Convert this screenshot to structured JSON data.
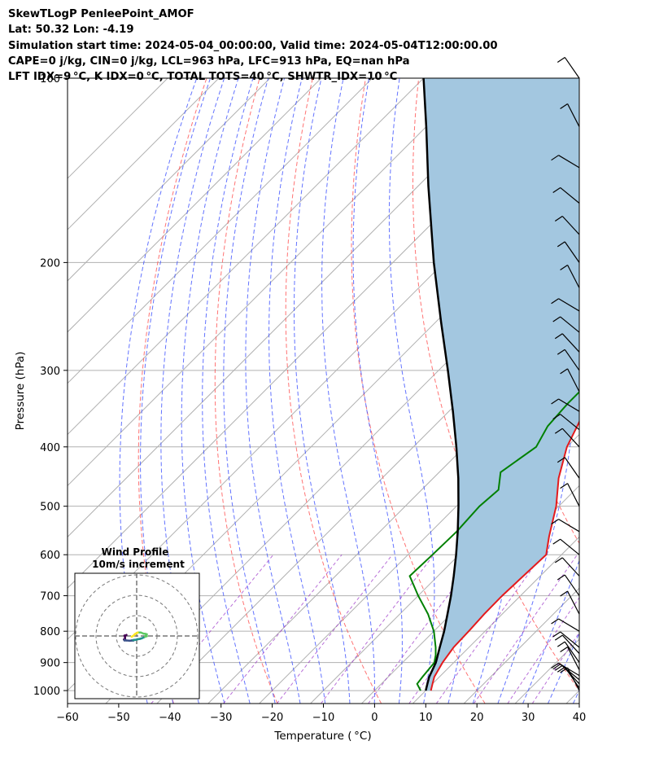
{
  "header": {
    "line1": "SkewTLogP PenleePoint_AMOF",
    "line2": "Lat: 50.32   Lon: -4.19",
    "line3": "Simulation start time: 2024-05-04_00:00:00, Valid time: 2024-05-04T12:00:00.00",
    "line4": "CAPE=0 j/kg, CIN=0 j/kg, LCL=963 hPa, LFC=913 hPa, EQ=nan hPa",
    "line5": "LFT IDX=9 °C, K IDX=0 °C, TOTAL TOTS=40 °C, SHWTR_IDX=10 °C"
  },
  "chart_data": {
    "type": "line",
    "xlabel": "Temperature ( °C)",
    "ylabel": "Pressure (hPa)",
    "xlim": [
      -60,
      40
    ],
    "ylim": [
      1050,
      100
    ],
    "y_scale": "log",
    "x_ticks": [
      -60,
      -50,
      -40,
      -30,
      -20,
      -10,
      0,
      10,
      20,
      30,
      40
    ],
    "x_tick_labels": [
      "−60",
      "−50",
      "−40",
      "−30",
      "−20",
      "−10",
      "0",
      "10",
      "20",
      "30",
      "40"
    ],
    "y_ticks": [
      1000,
      900,
      800,
      700,
      600,
      500,
      400,
      300,
      200,
      100
    ],
    "grid": true,
    "colors": {
      "temperature": "#e41a1c",
      "dewpoint": "#008000",
      "parcel": "#000000",
      "shading": "#a3c7e0",
      "dry_adiabats": "#ff5050",
      "moist_adiabats": "#3c50ff",
      "mixing_ratio": "#9a32c8"
    },
    "series": [
      {
        "name": "",
        "points": [
          [
            1000,
            11
          ],
          [
            975,
            10
          ],
          [
            950,
            9
          ],
          [
            900,
            7.8
          ],
          [
            850,
            7
          ],
          [
            800,
            6.8
          ],
          [
            750,
            6.5
          ],
          [
            700,
            6.4
          ],
          [
            650,
            6.7
          ],
          [
            600,
            7
          ],
          [
            560,
            4
          ],
          [
            500,
            -0.5
          ],
          [
            450,
            -5.5
          ],
          [
            400,
            -10
          ],
          [
            350,
            -13.5
          ],
          [
            320,
            -16
          ],
          [
            300,
            -17.5
          ],
          [
            275,
            -18
          ],
          [
            250,
            -15.5
          ],
          [
            220,
            -12
          ],
          [
            200,
            -8.5
          ],
          [
            180,
            -3
          ],
          [
            150,
            6
          ],
          [
            130,
            12
          ],
          [
            115,
            17.5
          ],
          [
            100,
            20.5
          ]
        ]
      },
      {
        "name": "",
        "points": [
          [
            1000,
            9
          ],
          [
            975,
            7
          ],
          [
            950,
            6.7
          ],
          [
            900,
            6.2
          ],
          [
            875,
            5
          ],
          [
            850,
            3.5
          ],
          [
            800,
            0
          ],
          [
            750,
            -4.5
          ],
          [
            700,
            -10
          ],
          [
            650,
            -15.5
          ],
          [
            600,
            -15.2
          ],
          [
            550,
            -15
          ],
          [
            500,
            -15.5
          ],
          [
            470,
            -15
          ],
          [
            440,
            -18
          ],
          [
            400,
            -16
          ],
          [
            370,
            -17.8
          ],
          [
            340,
            -18.3
          ],
          [
            300,
            -18.3
          ],
          [
            270,
            -17.5
          ],
          [
            250,
            -19
          ],
          [
            230,
            -18.5
          ],
          [
            210,
            -19
          ],
          [
            190,
            -22
          ],
          [
            175,
            -26
          ],
          [
            160,
            -27
          ],
          [
            140,
            -23
          ],
          [
            120,
            -16
          ],
          [
            105,
            -10.5
          ],
          [
            100,
            -8.5
          ]
        ]
      },
      {
        "name": "",
        "points": [
          [
            1000,
            10
          ],
          [
            975,
            9
          ],
          [
            950,
            8
          ],
          [
            900,
            6.5
          ],
          [
            850,
            4.3
          ],
          [
            800,
            2
          ],
          [
            750,
            -0.7
          ],
          [
            700,
            -3.6
          ],
          [
            650,
            -6.9
          ],
          [
            600,
            -10.6
          ],
          [
            550,
            -14.8
          ],
          [
            500,
            -19.6
          ],
          [
            450,
            -25.1
          ],
          [
            400,
            -31.6
          ],
          [
            350,
            -39.2
          ],
          [
            300,
            -48.2
          ],
          [
            250,
            -59
          ],
          [
            200,
            -72
          ],
          [
            150,
            -88
          ],
          [
            120,
            -100
          ],
          [
            100,
            -110
          ]
        ]
      }
    ],
    "wind_barbs_pressure_hPa": [
      1000,
      990,
      975,
      960,
      945,
      925,
      900,
      870,
      850,
      800,
      750,
      700,
      650,
      600,
      550,
      500,
      450,
      400,
      375,
      350,
      325,
      300,
      280,
      260,
      240,
      220,
      200,
      180,
      160,
      140,
      120,
      100
    ],
    "wind_profile": {
      "title_line1": "Wind Profile",
      "title_line2": "10m/s increment",
      "rings_ms": [
        10,
        20,
        30
      ],
      "hodograph_uv": [
        [
          -2,
          1
        ],
        [
          -3,
          2
        ],
        [
          -4,
          2
        ],
        [
          -3.5,
          4
        ],
        [
          -3.5,
          6
        ],
        [
          -3.5,
          7.5
        ],
        [
          -4.5,
          8.5
        ],
        [
          -4,
          9
        ],
        [
          -4,
          10
        ],
        [
          -2,
          10
        ],
        [
          1.5,
          10.5
        ],
        [
          3,
          10
        ],
        [
          3.5,
          10.2
        ],
        [
          5,
          10
        ],
        [
          4.5,
          9.5
        ],
        [
          6,
          9
        ],
        [
          7,
          9
        ],
        [
          9,
          8
        ],
        [
          11,
          7.5
        ],
        [
          13,
          6.5
        ],
        [
          15,
          5
        ],
        [
          16,
          4
        ],
        [
          18,
          3
        ],
        [
          17,
          2
        ],
        [
          18,
          0
        ],
        [
          16,
          -1
        ],
        [
          15,
          -1
        ],
        [
          12,
          -3
        ],
        [
          9,
          -3
        ],
        [
          8,
          -2
        ],
        [
          7,
          -1
        ],
        [
          6,
          0
        ],
        [
          5,
          2
        ],
        [
          3,
          4
        ]
      ]
    }
  }
}
